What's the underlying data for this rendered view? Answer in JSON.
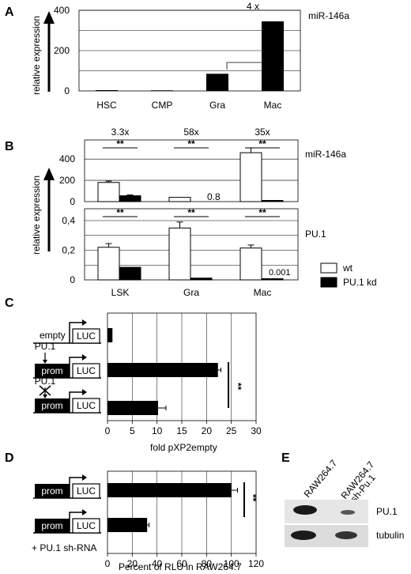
{
  "panels": {
    "A": "A",
    "B": "B",
    "C": "C",
    "D": "D",
    "E": "E"
  },
  "common": {
    "relative_expression": "relative expression"
  },
  "chart_data": [
    {
      "id": "A",
      "type": "bar",
      "title": "miR-146a",
      "categories": [
        "HSC",
        "CMP",
        "Gra",
        "Mac"
      ],
      "series": [
        {
          "values": [
            4,
            3,
            85,
            345
          ],
          "colors": [
            "#000000"
          ]
        }
      ],
      "yticks": [
        0,
        200,
        400
      ],
      "ylim": [
        0,
        400
      ],
      "gridlines": [
        100,
        200,
        300,
        400
      ],
      "bracket_label": "4 x",
      "ylabel": "relative expression"
    },
    {
      "id": "B_top",
      "type": "bar",
      "title": "miR-146a",
      "categories": [
        "LSK",
        "Gra",
        "Mac"
      ],
      "series": [
        {
          "name": "wt",
          "values": [
            180,
            40,
            460
          ],
          "errors": [
            12,
            0,
            45
          ]
        },
        {
          "name": "PU.1 kd",
          "values": [
            55,
            0,
            5
          ],
          "errors": [
            8,
            0,
            0
          ]
        }
      ],
      "yticks": [
        0,
        200,
        400
      ],
      "ylim": [
        0,
        580
      ],
      "gridlines": [
        200,
        400
      ],
      "fold_labels": [
        "3.3x",
        "58x",
        "35x"
      ],
      "significance": [
        "**",
        "**",
        "**"
      ],
      "value_annotation": "0.8"
    },
    {
      "id": "B_bottom",
      "type": "bar",
      "title": "PU.1",
      "categories": [
        "LSK",
        "Gra",
        "Mac"
      ],
      "series": [
        {
          "name": "wt",
          "values": [
            0.22,
            0.35,
            0.215
          ],
          "errors": [
            0.025,
            0.04,
            0.02
          ]
        },
        {
          "name": "PU.1 kd",
          "values": [
            0.085,
            0.012,
            0.001
          ],
          "errors": [
            0,
            0,
            0
          ]
        }
      ],
      "yticks": [
        "0",
        "0,2",
        "0,4"
      ],
      "ylim": [
        0,
        0.48
      ],
      "gridlines": [
        0.1,
        0.2,
        0.3,
        0.4
      ],
      "significance": [
        "**",
        "**",
        "**"
      ],
      "value_annotation": "0.001",
      "legend": [
        "wt",
        "PU.1 kd"
      ]
    },
    {
      "id": "C",
      "type": "bar",
      "orientation": "horizontal",
      "categories": [
        "empty",
        "prom",
        "prom (mut PU.1)"
      ],
      "values": [
        1,
        22.3,
        10.2
      ],
      "errors": [
        0,
        0.6,
        1.6
      ],
      "xticks": [
        0,
        5,
        10,
        15,
        20,
        25,
        30
      ],
      "xlim": [
        0,
        30
      ],
      "xlabel": "fold pXP2empty",
      "significance": "**"
    },
    {
      "id": "D",
      "type": "bar",
      "orientation": "horizontal",
      "categories": [
        "prom",
        "prom + PU.1 sh-RNA"
      ],
      "values": [
        100,
        32
      ],
      "errors": [
        5,
        1.5
      ],
      "xticks": [
        0,
        20,
        40,
        60,
        80,
        100,
        120
      ],
      "xlim": [
        0,
        120
      ],
      "xlabel": "Percent of RLU in RAW264.7",
      "significance": "**"
    }
  ],
  "construct_text": {
    "empty": "empty",
    "luc": "LUC",
    "prom": "prom",
    "pu1": "PU.1",
    "shrna": "+ PU.1 sh-RNA"
  },
  "blot": {
    "lanes": [
      "RAW264.7",
      "RAW264.7\nsh-Pu.1"
    ],
    "lane1": "RAW264.7",
    "lane2a": "RAW264.7",
    "lane2b": "sh-Pu.1",
    "bands": [
      "PU.1",
      "tubulin"
    ]
  }
}
